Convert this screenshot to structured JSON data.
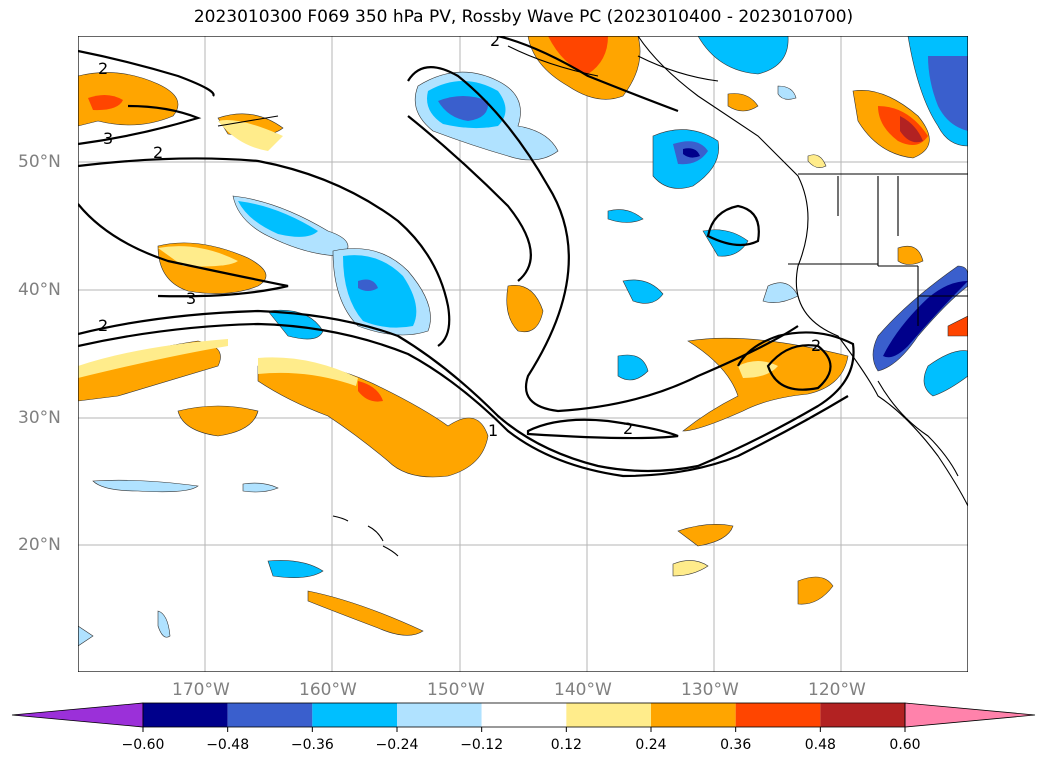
{
  "title": "2023010300 F069 350 hPa PV, Rossby Wave PC (2023010400 - 2023010700)",
  "axes": {
    "lat_labels": [
      "50°N",
      "40°N",
      "30°N",
      "20°N"
    ],
    "lon_labels": [
      "170°W",
      "160°W",
      "150°W",
      "140°W",
      "130°W",
      "120°W"
    ]
  },
  "contour_labels": [
    "2",
    "2",
    "3",
    "2",
    "3",
    "2",
    "1",
    "2",
    "2"
  ],
  "colorbar": {
    "ticks": [
      "−0.60",
      "−0.48",
      "−0.36",
      "−0.24",
      "−0.12",
      "0.12",
      "0.24",
      "0.36",
      "0.48",
      "0.60"
    ],
    "colors": [
      "#9b30d9",
      "#00008b",
      "#3a5fcd",
      "#00bfff",
      "#b0e2ff",
      "#ffffff",
      "#ffec8b",
      "#ffa500",
      "#ff4500",
      "#b22222",
      "#ff82ab"
    ]
  },
  "palette": {
    "land_outline": "#000000",
    "grid": "#aaaaaa",
    "axis_text": "#808080"
  }
}
